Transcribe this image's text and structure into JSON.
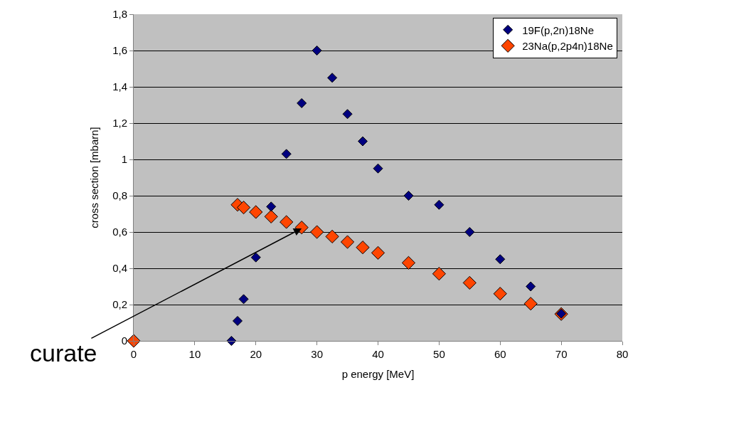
{
  "chart_data": {
    "type": "scatter",
    "xlabel": "p energy [MeV]",
    "ylabel": "cross section [mbarn]",
    "xlim": [
      0,
      80
    ],
    "xticks": [
      0,
      10,
      20,
      30,
      40,
      50,
      60,
      70,
      80
    ],
    "ylim": [
      0,
      1.8
    ],
    "yticks": [
      0,
      {
        "value": 0.2,
        "label": "0,2"
      },
      {
        "value": 0.4,
        "label": "0,4"
      },
      {
        "value": 0.6,
        "label": "0,6"
      },
      {
        "value": 0.8,
        "label": "0,8"
      },
      1,
      {
        "value": 1.2,
        "label": "1,2"
      },
      {
        "value": 1.4,
        "label": "1,4"
      },
      {
        "value": 1.6,
        "label": "1,6"
      },
      {
        "value": 1.8,
        "label": "1,8"
      }
    ],
    "grid": "y",
    "legend": "top right",
    "marker": "diamond",
    "series": [
      {
        "name": "19F(p,2n)18Ne",
        "color": "#000080",
        "x": [
          16,
          17,
          18,
          20,
          22.5,
          25,
          27.5,
          30,
          32.5,
          35,
          37.5,
          40,
          45,
          50,
          55,
          60,
          65,
          70
        ],
        "values": [
          0,
          0.11,
          0.23,
          0.46,
          0.74,
          1.03,
          1.31,
          1.6,
          1.45,
          1.25,
          1.1,
          0.95,
          0.8,
          0.75,
          0.6,
          0.45,
          0.3,
          0.15
        ]
      },
      {
        "name": "23Na(p,2p4n)18Ne",
        "color": "#ff4500",
        "x": [
          0,
          17,
          18,
          20,
          22.5,
          25,
          27.5,
          30,
          32.5,
          35,
          37.5,
          40,
          45,
          50,
          55,
          60,
          65,
          70
        ],
        "values": [
          0,
          0.75,
          0.735,
          0.71,
          0.685,
          0.655,
          0.625,
          0.6,
          0.575,
          0.545,
          0.515,
          0.485,
          0.43,
          0.37,
          0.32,
          0.26,
          0.205,
          0.148
        ]
      }
    ],
    "annotations": [
      {
        "text": "curate",
        "x": 27.5,
        "y": 0.62
      }
    ]
  }
}
